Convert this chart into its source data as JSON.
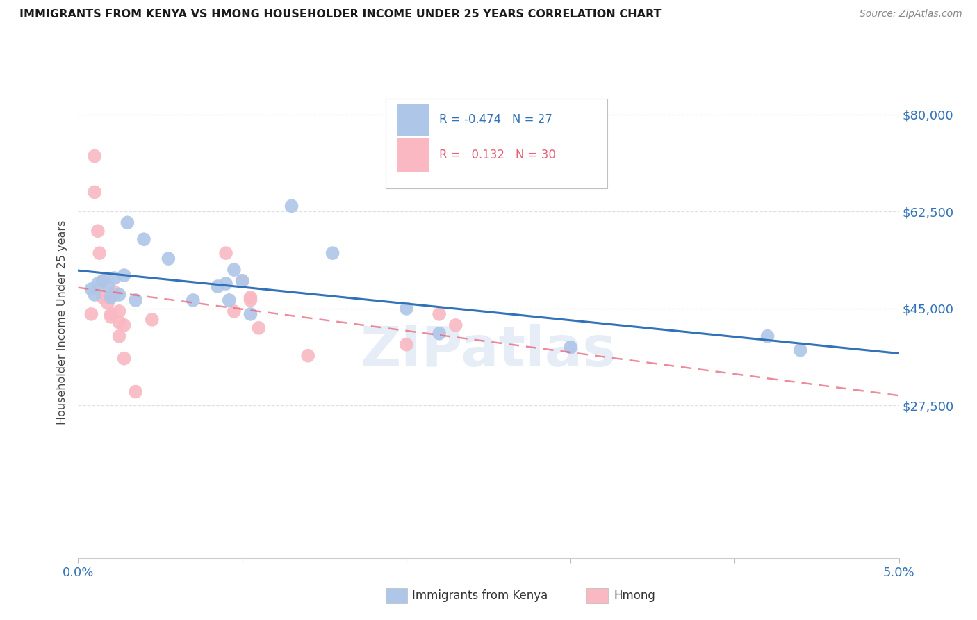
{
  "title": "IMMIGRANTS FROM KENYA VS HMONG HOUSEHOLDER INCOME UNDER 25 YEARS CORRELATION CHART",
  "source": "Source: ZipAtlas.com",
  "ylabel": "Householder Income Under 25 years",
  "legend_kenya": {
    "R": "-0.474",
    "N": "27",
    "color": "#aec6e8"
  },
  "legend_hmong": {
    "R": "0.132",
    "N": "30",
    "color": "#f9b8c2"
  },
  "xlim": [
    0.0,
    0.05
  ],
  "ylim": [
    0,
    85000
  ],
  "background_color": "#ffffff",
  "grid_color": "#d8d8d8",
  "kenya_scatter_color": "#aec6e8",
  "hmong_scatter_color": "#f9b8c2",
  "kenya_line_color": "#3272b8",
  "hmong_line_color": "#e8637a",
  "watermark_color": "#c8d8ee",
  "title_color": "#1a1a1a",
  "source_color": "#888888",
  "axis_label_color": "#3272b8",
  "kenya_points_x": [
    0.0008,
    0.001,
    0.0012,
    0.0015,
    0.0018,
    0.002,
    0.0022,
    0.0025,
    0.0028,
    0.003,
    0.0035,
    0.004,
    0.0055,
    0.007,
    0.0085,
    0.009,
    0.0092,
    0.0095,
    0.01,
    0.0105,
    0.013,
    0.0155,
    0.02,
    0.022,
    0.03,
    0.042,
    0.044
  ],
  "kenya_points_y": [
    48500,
    47500,
    49500,
    50000,
    49000,
    47000,
    50500,
    47500,
    51000,
    60500,
    46500,
    57500,
    54000,
    46500,
    49000,
    49500,
    46500,
    52000,
    50000,
    44000,
    63500,
    55000,
    45000,
    40500,
    38000,
    40000,
    37500
  ],
  "hmong_points_x": [
    0.0008,
    0.001,
    0.001,
    0.0012,
    0.0013,
    0.0015,
    0.0015,
    0.0018,
    0.0018,
    0.002,
    0.002,
    0.0022,
    0.0022,
    0.0025,
    0.0025,
    0.0025,
    0.0028,
    0.0028,
    0.0035,
    0.0045,
    0.009,
    0.0095,
    0.01,
    0.0105,
    0.0105,
    0.011,
    0.014,
    0.02,
    0.022,
    0.023
  ],
  "hmong_points_y": [
    44000,
    72500,
    66000,
    59000,
    55000,
    50000,
    47000,
    47000,
    46000,
    44000,
    43500,
    48000,
    47500,
    44500,
    42500,
    40000,
    42000,
    36000,
    30000,
    43000,
    55000,
    44500,
    50000,
    47000,
    46500,
    41500,
    36500,
    38500,
    44000,
    42000
  ]
}
